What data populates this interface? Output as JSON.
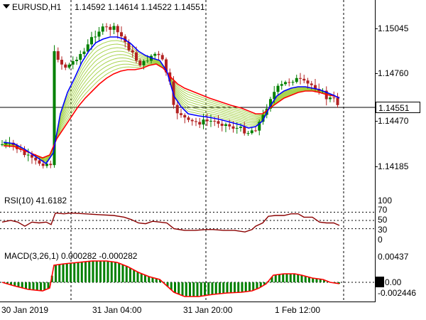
{
  "chart_header": {
    "symbol": "EURUSD,H1",
    "ohlc": "1.14592 1.14614 1.14522 1.14551"
  },
  "price_axis": {
    "labels": [
      "1.15045",
      "1.14760",
      "1.14470",
      "1.14185"
    ],
    "current_price": "1.14551"
  },
  "rsi": {
    "label": "RSI(10) 41.6182",
    "levels": [
      "100",
      "70",
      "50",
      "30",
      "0"
    ]
  },
  "macd": {
    "label": "MACD(3,26,1) 0.000282 -0.000282",
    "levels": [
      "0.00437",
      "0.00",
      "-0.002446"
    ]
  },
  "time_axis": {
    "labels": [
      "30 Jan 2019",
      "31 Jan 04:00",
      "31 Jan 20:00",
      "1 Feb 12:00"
    ]
  },
  "colors": {
    "bull_candle": "#008000",
    "bear_candle": "#b22222",
    "fast_ma": "#0000ff",
    "slow_ma": "#ff0000",
    "ribbon": "#9acd32",
    "rsi_line": "#8b0000",
    "macd_hist": "#008000",
    "macd_signal": "#ff0000"
  }
}
